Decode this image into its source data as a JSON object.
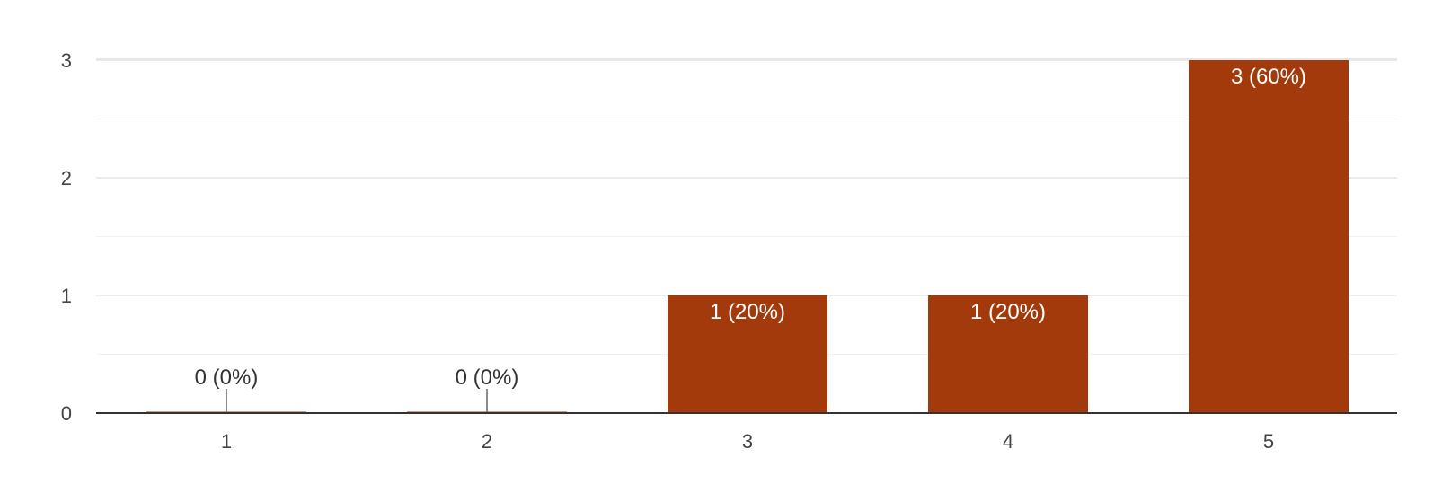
{
  "chart_data": {
    "type": "bar",
    "categories": [
      "1",
      "2",
      "3",
      "4",
      "5"
    ],
    "values": [
      0,
      0,
      1,
      1,
      3
    ],
    "data_labels": [
      "0 (0%)",
      "0 (0%)",
      "1 (20%)",
      "1 (20%)",
      "3 (60%)"
    ],
    "ylim": [
      0,
      3
    ],
    "yticks": [
      "0",
      "1",
      "2",
      "3"
    ],
    "grid": true,
    "title": "",
    "xlabel": "",
    "ylabel": "",
    "bar_color": "#a33a0b",
    "label_color_inside": "#ffffff",
    "label_color_outside": "#333333"
  }
}
